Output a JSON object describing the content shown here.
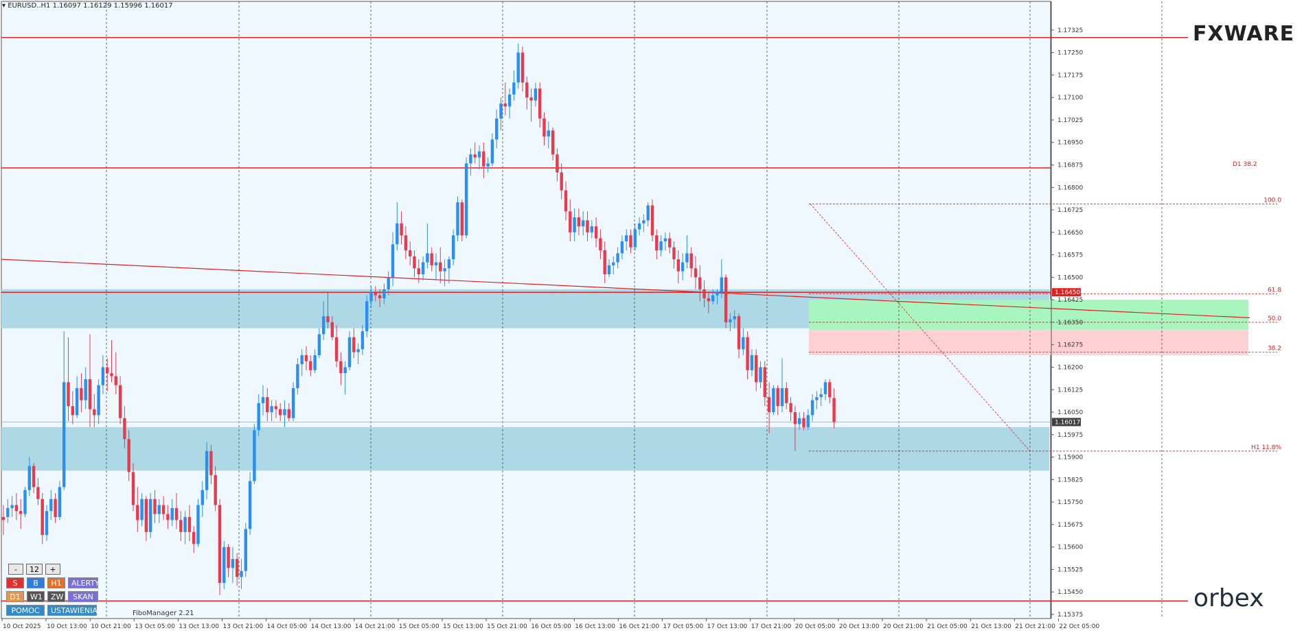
{
  "header": {
    "symbol": "EURUSD..H1",
    "ohlc": "1.16097 1.16129 1.15996 1.16017"
  },
  "chart_data": {
    "type": "candlestick",
    "symbol": "EURUSD..H1",
    "ylim": [
      1.15375,
      1.17375
    ],
    "y_ticks": [
      "1.17325",
      "1.17250",
      "1.17175",
      "1.17100",
      "1.17025",
      "1.16950",
      "1.16875",
      "1.16800",
      "1.16725",
      "1.16650",
      "1.16575",
      "1.16500",
      "1.16425",
      "1.16350",
      "1.16275",
      "1.16200",
      "1.16125",
      "1.16050",
      "1.15975",
      "1.15900",
      "1.15825",
      "1.15750",
      "1.15675",
      "1.15600",
      "1.15525",
      "1.15450",
      "1.15375"
    ],
    "x_labels": [
      "10 Oct 2025",
      "10 Oct 13:00",
      "10 Oct 21:00",
      "13 Oct 05:00",
      "13 Oct 13:00",
      "13 Oct 21:00",
      "14 Oct 05:00",
      "14 Oct 13:00",
      "14 Oct 21:00",
      "15 Oct 05:00",
      "15 Oct 13:00",
      "15 Oct 21:00",
      "16 Oct 05:00",
      "16 Oct 13:00",
      "16 Oct 21:00",
      "17 Oct 05:00",
      "17 Oct 13:00",
      "17 Oct 21:00",
      "20 Oct 05:00",
      "20 Oct 13:00",
      "20 Oct 21:00",
      "21 Oct 05:00",
      "21 Oct 13:00",
      "21 Oct 21:00",
      "22 Oct 05:00"
    ],
    "current_price": "1.16017",
    "price_tag_red": "1.16450",
    "zones": [
      {
        "name": "upper-supply-zone",
        "from": 1.1633,
        "to": 1.1646,
        "color": "#add8e6"
      },
      {
        "name": "lower-demand-zone",
        "from": 1.15855,
        "to": 1.16,
        "color": "#add8e6"
      },
      {
        "name": "fibo-green-zone",
        "from": 1.16325,
        "to": 1.16425,
        "color": "#a8f5c0"
      },
      {
        "name": "fibo-pink-zone",
        "from": 1.1624,
        "to": 1.16325,
        "color": "#ffd0d4"
      }
    ],
    "horizontal_lines": [
      {
        "name": "resistance-top",
        "price": 1.173,
        "color": "#e02020"
      },
      {
        "name": "d1-fibo-level",
        "price": 1.16865,
        "color": "#e02020",
        "label": "D1 38.2"
      },
      {
        "name": "upper-zone-edge",
        "price": 1.1645,
        "color": "#e02020"
      },
      {
        "name": "support-bottom",
        "price": 1.1542,
        "color": "#e02020"
      }
    ],
    "fibo_levels": [
      {
        "label": "100.0",
        "price": 1.16745
      },
      {
        "label": "61.8",
        "price": 1.16445
      },
      {
        "label": "50.0",
        "price": 1.1635
      },
      {
        "label": "38.2",
        "price": 1.1625
      },
      {
        "label": "H1 11.8%",
        "price": 1.1592
      }
    ],
    "trendline": {
      "from": {
        "bar": 0,
        "price": 1.1656
      },
      "to": {
        "bar": 240,
        "price": 1.16365
      },
      "color": "#e02020"
    },
    "candles": [
      [
        1.157,
        1.1574,
        1.1564,
        1.1569
      ],
      [
        1.157,
        1.1576,
        1.1568,
        1.1573
      ],
      [
        1.1573,
        1.1577,
        1.157,
        1.1574
      ],
      [
        1.1574,
        1.1578,
        1.1569,
        1.1572
      ],
      [
        1.1572,
        1.1576,
        1.1566,
        1.1571
      ],
      [
        1.1571,
        1.158,
        1.157,
        1.1579
      ],
      [
        1.1579,
        1.159,
        1.1577,
        1.1587
      ],
      [
        1.1587,
        1.1588,
        1.1578,
        1.158
      ],
      [
        1.158,
        1.1583,
        1.1574,
        1.1576
      ],
      [
        1.1576,
        1.1578,
        1.1561,
        1.1564
      ],
      [
        1.1564,
        1.1574,
        1.1562,
        1.1572
      ],
      [
        1.1572,
        1.1579,
        1.1569,
        1.1576
      ],
      [
        1.1576,
        1.1578,
        1.1568,
        1.157
      ],
      [
        1.157,
        1.1582,
        1.1569,
        1.158
      ],
      [
        1.158,
        1.1632,
        1.1579,
        1.1615
      ],
      [
        1.1615,
        1.163,
        1.1602,
        1.1607
      ],
      [
        1.1607,
        1.1612,
        1.1601,
        1.1604
      ],
      [
        1.1604,
        1.1617,
        1.1603,
        1.1613
      ],
      [
        1.1613,
        1.1618,
        1.1605,
        1.1609
      ],
      [
        1.1609,
        1.162,
        1.1606,
        1.1616
      ],
      [
        1.1616,
        1.1631,
        1.16,
        1.1606
      ],
      [
        1.1606,
        1.1611,
        1.16,
        1.1604
      ],
      [
        1.1604,
        1.1616,
        1.1601,
        1.1614
      ],
      [
        1.1614,
        1.1624,
        1.1611,
        1.162
      ],
      [
        1.162,
        1.1623,
        1.1612,
        1.1618
      ],
      [
        1.1618,
        1.1629,
        1.1615,
        1.1617
      ],
      [
        1.1617,
        1.1625,
        1.1611,
        1.1614
      ],
      [
        1.1614,
        1.1617,
        1.1601,
        1.1603
      ],
      [
        1.1603,
        1.1607,
        1.1593,
        1.1596
      ],
      [
        1.1596,
        1.1599,
        1.1582,
        1.1585
      ],
      [
        1.1585,
        1.1588,
        1.1572,
        1.1574
      ],
      [
        1.1574,
        1.158,
        1.1565,
        1.1569
      ],
      [
        1.1569,
        1.1578,
        1.1567,
        1.1576
      ],
      [
        1.1576,
        1.1577,
        1.1562,
        1.1565
      ],
      [
        1.1565,
        1.1578,
        1.1563,
        1.1576
      ],
      [
        1.1576,
        1.1579,
        1.1568,
        1.1571
      ],
      [
        1.1571,
        1.1576,
        1.1568,
        1.1574
      ],
      [
        1.1574,
        1.1577,
        1.1569,
        1.1571
      ],
      [
        1.1571,
        1.1574,
        1.1566,
        1.1569
      ],
      [
        1.1569,
        1.1576,
        1.1567,
        1.1573
      ],
      [
        1.1573,
        1.1578,
        1.1566,
        1.1569
      ],
      [
        1.1569,
        1.1572,
        1.1562,
        1.1565
      ],
      [
        1.1565,
        1.1572,
        1.1561,
        1.157
      ],
      [
        1.157,
        1.1574,
        1.1562,
        1.1565
      ],
      [
        1.1565,
        1.1567,
        1.1558,
        1.1561
      ],
      [
        1.1561,
        1.1576,
        1.156,
        1.1574
      ],
      [
        1.1574,
        1.1582,
        1.157,
        1.1579
      ],
      [
        1.1579,
        1.1595,
        1.1576,
        1.1592
      ],
      [
        1.1592,
        1.1594,
        1.1581,
        1.1584
      ],
      [
        1.1584,
        1.1587,
        1.1572,
        1.1574
      ],
      [
        1.1574,
        1.1576,
        1.1544,
        1.1548
      ],
      [
        1.1548,
        1.1562,
        1.1546,
        1.156
      ],
      [
        1.156,
        1.1561,
        1.155,
        1.1553
      ],
      [
        1.1553,
        1.156,
        1.1548,
        1.1556
      ],
      [
        1.1556,
        1.1558,
        1.1547,
        1.155
      ],
      [
        1.155,
        1.1556,
        1.1546,
        1.1552
      ],
      [
        1.1552,
        1.1568,
        1.155,
        1.1566
      ],
      [
        1.1566,
        1.1585,
        1.1564,
        1.1582
      ],
      [
        1.1582,
        1.1601,
        1.1581,
        1.1599
      ],
      [
        1.1599,
        1.1611,
        1.1597,
        1.1608
      ],
      [
        1.1608,
        1.1614,
        1.1604,
        1.161
      ],
      [
        1.161,
        1.1613,
        1.1602,
        1.1605
      ],
      [
        1.1605,
        1.1609,
        1.1602,
        1.1607
      ],
      [
        1.1607,
        1.1609,
        1.1603,
        1.1606
      ],
      [
        1.1606,
        1.1608,
        1.1602,
        1.1604
      ],
      [
        1.1604,
        1.1609,
        1.16,
        1.1606
      ],
      [
        1.1606,
        1.1608,
        1.1602,
        1.1603
      ],
      [
        1.1603,
        1.1615,
        1.1602,
        1.1613
      ],
      [
        1.1613,
        1.1623,
        1.1611,
        1.1621
      ],
      [
        1.1621,
        1.1626,
        1.1617,
        1.1624
      ],
      [
        1.1624,
        1.1627,
        1.1619,
        1.1622
      ],
      [
        1.1622,
        1.1624,
        1.1617,
        1.1619
      ],
      [
        1.1619,
        1.1626,
        1.1618,
        1.1624
      ],
      [
        1.1624,
        1.1633,
        1.1623,
        1.1631
      ],
      [
        1.1631,
        1.1642,
        1.1629,
        1.1637
      ],
      [
        1.1637,
        1.1645,
        1.1633,
        1.1635
      ],
      [
        1.1635,
        1.1637,
        1.1629,
        1.163
      ],
      [
        1.163,
        1.1634,
        1.162,
        1.1622
      ],
      [
        1.1622,
        1.1625,
        1.1614,
        1.1618
      ],
      [
        1.1618,
        1.1622,
        1.1611,
        1.162
      ],
      [
        1.162,
        1.1632,
        1.1619,
        1.163
      ],
      [
        1.163,
        1.1633,
        1.1623,
        1.1625
      ],
      [
        1.1625,
        1.1628,
        1.1621,
        1.1626
      ],
      [
        1.1626,
        1.1634,
        1.1624,
        1.1632
      ],
      [
        1.1632,
        1.1644,
        1.163,
        1.1642
      ],
      [
        1.1642,
        1.1647,
        1.164,
        1.1645
      ],
      [
        1.1645,
        1.1647,
        1.1642,
        1.1644
      ],
      [
        1.1644,
        1.1646,
        1.164,
        1.1643
      ],
      [
        1.1643,
        1.1648,
        1.1641,
        1.1646
      ],
      [
        1.1646,
        1.1652,
        1.1644,
        1.165
      ],
      [
        1.165,
        1.1665,
        1.1647,
        1.1661
      ],
      [
        1.1661,
        1.1675,
        1.1659,
        1.1668
      ],
      [
        1.1668,
        1.1672,
        1.1661,
        1.1664
      ],
      [
        1.1664,
        1.1667,
        1.1656,
        1.1659
      ],
      [
        1.1659,
        1.1662,
        1.1654,
        1.1657
      ],
      [
        1.1657,
        1.1659,
        1.165,
        1.1653
      ],
      [
        1.1653,
        1.1656,
        1.1648,
        1.1651
      ],
      [
        1.1651,
        1.1657,
        1.1649,
        1.1655
      ],
      [
        1.1655,
        1.1668,
        1.1653,
        1.1658
      ],
      [
        1.1658,
        1.166,
        1.1652,
        1.1654
      ],
      [
        1.1654,
        1.1658,
        1.1649,
        1.1655
      ],
      [
        1.1655,
        1.166,
        1.1648,
        1.1652
      ],
      [
        1.1652,
        1.1656,
        1.1647,
        1.1653
      ],
      [
        1.1653,
        1.1657,
        1.1648,
        1.1656
      ],
      [
        1.1656,
        1.1666,
        1.1654,
        1.1664
      ],
      [
        1.1664,
        1.1677,
        1.1662,
        1.1675
      ],
      [
        1.1675,
        1.1676,
        1.1662,
        1.1664
      ],
      [
        1.1664,
        1.169,
        1.1663,
        1.1688
      ],
      [
        1.1688,
        1.1693,
        1.1684,
        1.1691
      ],
      [
        1.1691,
        1.1695,
        1.1688,
        1.169
      ],
      [
        1.169,
        1.1694,
        1.1686,
        1.1692
      ],
      [
        1.1692,
        1.1695,
        1.1683,
        1.1687
      ],
      [
        1.1687,
        1.169,
        1.1685,
        1.1688
      ],
      [
        1.1688,
        1.1698,
        1.1687,
        1.1696
      ],
      [
        1.1696,
        1.1706,
        1.1693,
        1.1703
      ],
      [
        1.1703,
        1.171,
        1.1699,
        1.1708
      ],
      [
        1.1708,
        1.1715,
        1.1704,
        1.1707
      ],
      [
        1.1707,
        1.1713,
        1.1703,
        1.1711
      ],
      [
        1.1711,
        1.1719,
        1.1709,
        1.1715
      ],
      [
        1.1715,
        1.1728,
        1.1713,
        1.1725
      ],
      [
        1.1725,
        1.1727,
        1.1712,
        1.1715
      ],
      [
        1.1715,
        1.1717,
        1.1706,
        1.171
      ],
      [
        1.171,
        1.1713,
        1.1702,
        1.1709
      ],
      [
        1.1709,
        1.1715,
        1.1707,
        1.1713
      ],
      [
        1.1713,
        1.1715,
        1.17,
        1.1703
      ],
      [
        1.1703,
        1.1705,
        1.1694,
        1.1697
      ],
      [
        1.1697,
        1.1702,
        1.1693,
        1.1699
      ],
      [
        1.1699,
        1.17,
        1.1689,
        1.1691
      ],
      [
        1.1691,
        1.1693,
        1.1682,
        1.1685
      ],
      [
        1.1685,
        1.1688,
        1.1676,
        1.1679
      ],
      [
        1.1679,
        1.1682,
        1.1669,
        1.1672
      ],
      [
        1.1672,
        1.1676,
        1.1662,
        1.1665
      ],
      [
        1.1665,
        1.1673,
        1.1662,
        1.167
      ],
      [
        1.167,
        1.1673,
        1.1664,
        1.1667
      ],
      [
        1.1667,
        1.1672,
        1.1664,
        1.1669
      ],
      [
        1.1669,
        1.1672,
        1.1662,
        1.1665
      ],
      [
        1.1665,
        1.1669,
        1.1663,
        1.1667
      ],
      [
        1.1667,
        1.167,
        1.166,
        1.1663
      ],
      [
        1.1663,
        1.1666,
        1.1656,
        1.1659
      ],
      [
        1.1659,
        1.1662,
        1.1648,
        1.1651
      ],
      [
        1.1651,
        1.1656,
        1.165,
        1.1654
      ],
      [
        1.1654,
        1.1657,
        1.1651,
        1.1655
      ],
      [
        1.1655,
        1.166,
        1.1653,
        1.1658
      ],
      [
        1.1658,
        1.1664,
        1.1656,
        1.1662
      ],
      [
        1.1662,
        1.1666,
        1.1659,
        1.1664
      ],
      [
        1.1664,
        1.1666,
        1.1658,
        1.166
      ],
      [
        1.166,
        1.1668,
        1.1659,
        1.1666
      ],
      [
        1.1666,
        1.167,
        1.1664,
        1.1668
      ],
      [
        1.1668,
        1.1671,
        1.1665,
        1.1669
      ],
      [
        1.1669,
        1.1675,
        1.1667,
        1.1674
      ],
      [
        1.1674,
        1.1676,
        1.1662,
        1.1664
      ],
      [
        1.1664,
        1.1666,
        1.1656,
        1.1659
      ],
      [
        1.1659,
        1.1664,
        1.1657,
        1.1662
      ],
      [
        1.1662,
        1.1665,
        1.1659,
        1.1663
      ],
      [
        1.1663,
        1.1665,
        1.1658,
        1.166
      ],
      [
        1.166,
        1.1662,
        1.1653,
        1.1656
      ],
      [
        1.1656,
        1.1659,
        1.1648,
        1.1652
      ],
      [
        1.1652,
        1.1658,
        1.1649,
        1.1655
      ],
      [
        1.1655,
        1.1664,
        1.1653,
        1.1658
      ],
      [
        1.1658,
        1.166,
        1.165,
        1.1653
      ],
      [
        1.1653,
        1.1657,
        1.1646,
        1.165
      ],
      [
        1.165,
        1.1654,
        1.1642,
        1.1646
      ],
      [
        1.1646,
        1.1649,
        1.164,
        1.1643
      ],
      [
        1.1643,
        1.1645,
        1.1638,
        1.1642
      ],
      [
        1.1642,
        1.1646,
        1.1641,
        1.1644
      ],
      [
        1.1644,
        1.1646,
        1.1641,
        1.1645
      ],
      [
        1.1645,
        1.1656,
        1.1643,
        1.165
      ],
      [
        1.165,
        1.1651,
        1.1633,
        1.1635
      ],
      [
        1.1635,
        1.1638,
        1.1632,
        1.1636
      ],
      [
        1.1636,
        1.1639,
        1.1633,
        1.1637
      ],
      [
        1.1637,
        1.1638,
        1.1623,
        1.1626
      ],
      [
        1.1626,
        1.1633,
        1.1624,
        1.163
      ],
      [
        1.163,
        1.1632,
        1.1616,
        1.1619
      ],
      [
        1.1619,
        1.1626,
        1.1617,
        1.1624
      ],
      [
        1.1624,
        1.1626,
        1.1612,
        1.1615
      ],
      [
        1.1615,
        1.1622,
        1.1613,
        1.162
      ],
      [
        1.162,
        1.1622,
        1.1607,
        1.161
      ],
      [
        1.161,
        1.1615,
        1.1598,
        1.1605
      ],
      [
        1.1605,
        1.1614,
        1.1604,
        1.1613
      ],
      [
        1.1613,
        1.1614,
        1.1604,
        1.1607
      ],
      [
        1.1607,
        1.1623,
        1.1605,
        1.1613
      ],
      [
        1.1613,
        1.1615,
        1.1606,
        1.1608
      ],
      [
        1.1608,
        1.161,
        1.1602,
        1.1605
      ],
      [
        1.1605,
        1.1607,
        1.1592,
        1.1601
      ],
      [
        1.1601,
        1.1605,
        1.1599,
        1.1603
      ],
      [
        1.1603,
        1.1605,
        1.1599,
        1.16
      ],
      [
        1.16,
        1.1606,
        1.1599,
        1.1604
      ],
      [
        1.1604,
        1.1611,
        1.1602,
        1.1609
      ],
      [
        1.1609,
        1.1612,
        1.1606,
        1.161
      ],
      [
        1.161,
        1.1613,
        1.1607,
        1.1611
      ],
      [
        1.1611,
        1.1616,
        1.1609,
        1.1615
      ],
      [
        1.1615,
        1.1616,
        1.1608,
        1.161
      ],
      [
        1.16097,
        1.16129,
        1.15996,
        1.16017
      ]
    ]
  },
  "labels": {
    "fibo_manager": "FiboManager 2.21",
    "brand_top": "FXWARE",
    "brand_bottom": "orbex"
  },
  "toolbar": {
    "minus": "-",
    "value": "12",
    "plus": "+",
    "row2": [
      "S",
      "B",
      "H1",
      "ALERTY"
    ],
    "row3": [
      "D1",
      "W1",
      "ZW",
      "SKAN"
    ],
    "row4": [
      "POMOC",
      "USTAWIENIA"
    ]
  },
  "colors": {
    "bull": "#2a8ff0",
    "bear": "#e8394d",
    "background": "#f0f8ff",
    "grid": "#444444"
  }
}
